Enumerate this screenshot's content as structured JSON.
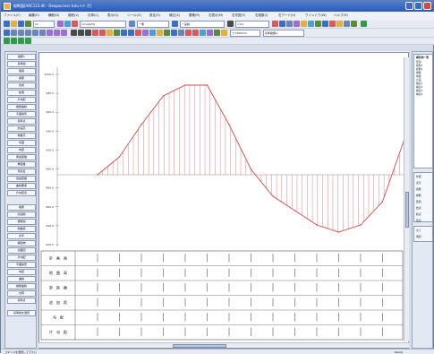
{
  "window": {
    "title": "縦断図[ABC123.dll - Deepaccess tutu sテ-ガ]"
  },
  "menu": [
    "ファイル(F)",
    "編集(E)",
    "横断(D)",
    "縦断(V)",
    "計算(C)",
    "表示(Q)",
    "ツール(G)",
    "設定(S)",
    "補正(X)",
    "要素(R)",
    "右表示(M)",
    "右作図(Y)",
    "右縦断(I)",
    "右ワード(U)",
    "ウインドウ(W)",
    "ヘルプ(H)"
  ],
  "toolbar": {
    "layer_combo": "L0",
    "scale_combo": "h=val(23)",
    "line_combo": "ー重",
    "pen_combo": "ー実線",
    "width_combo": "=3.0",
    "size_combo": "ス=500mm",
    "view_combo": "基準縦断A"
  },
  "left_panel": {
    "top_items": [
      "縦断1",
      "基準線",
      "幅員",
      "横断",
      "合成",
      "拡幅",
      "片勾配",
      "縦断曲線",
      "平面線形",
      "基準点",
      "計画高",
      "地盤高",
      "切盛",
      "勾配",
      "累加距離",
      "単距離",
      "測点名",
      "追加距離",
      "曲線要素",
      "片勾配表"
    ],
    "bottom_items": [
      "縦断",
      "計画線",
      "横断線",
      "地盤線",
      "文字",
      "構造物",
      "切盛図",
      "片勾配",
      "平面線形",
      "勾配",
      "曲線",
      "縦断曲線",
      "計算",
      "基準点"
    ],
    "footer": "基準線を選択"
  },
  "canvas": {
    "instruction": "コマンドを選択して下さい。"
  },
  "chart_data": {
    "type": "line",
    "y_tick_labels": [
      "1000.0",
      "980.0",
      "960.0",
      "940.0",
      "920.0",
      "900.0",
      "880.0",
      "860.0",
      "840.0",
      "820.0"
    ],
    "x": [
      0,
      7,
      14,
      21,
      28,
      35,
      42,
      49,
      56,
      63,
      70,
      77,
      84,
      91,
      98
    ],
    "series": [
      {
        "values": [
          0,
          10,
          28,
          44,
          50,
          50,
          28,
          3,
          -12,
          -20,
          -28,
          -32,
          -28,
          -15,
          20
        ],
        "color": "#d44a4a"
      }
    ],
    "baseline": 0,
    "ylim": [
      -40,
      60
    ]
  },
  "table": {
    "row_labels": [
      "計　画　高",
      "地　盤　高",
      "単　距　離",
      "追　加　距",
      "勾　配",
      "片　勾　配"
    ]
  },
  "right_panel": {
    "header": "構造物一覧",
    "tree": [
      "区間",
      "縦断1",
      "縦断2",
      "横断",
      "地盤",
      "計画",
      "構造1",
      "構造2",
      "構造3",
      "構造4"
    ],
    "labels": [
      "作図",
      "表示",
      "縦断",
      "横断",
      "区間",
      "始点",
      "終点",
      "区割"
    ],
    "checks": [
      "全て",
      "個別"
    ]
  },
  "status": {
    "left": "コマンドを選択して下さい",
    "right": "Ready"
  },
  "colors": {
    "accent": "#d44a4a",
    "titlebar": "#2a5bb5"
  }
}
